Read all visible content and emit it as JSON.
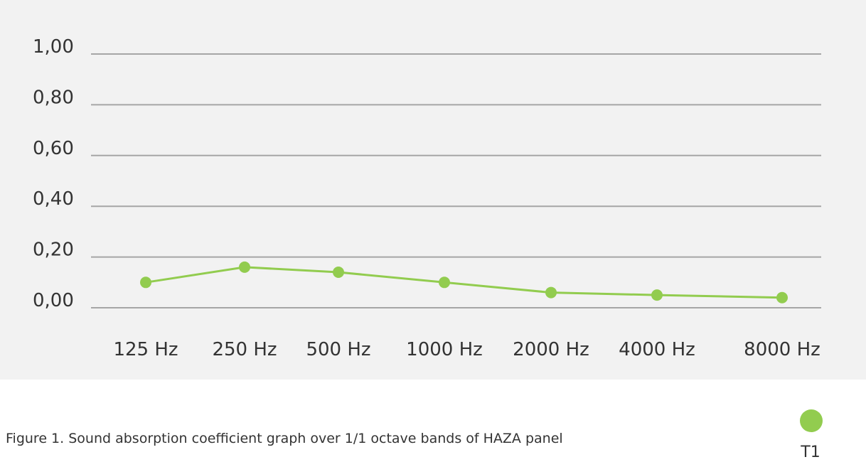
{
  "chart_data": {
    "type": "line",
    "title": "",
    "xlabel": "",
    "ylabel": "",
    "categories": [
      "125 Hz",
      "250 Hz",
      "500 Hz",
      "1000 Hz",
      "2000 Hz",
      "4000 Hz",
      "8000 Hz"
    ],
    "series": [
      {
        "name": "T1",
        "values": [
          0.1,
          0.16,
          0.14,
          0.1,
          0.06,
          0.05,
          0.04
        ]
      }
    ],
    "ylim": [
      0,
      1
    ],
    "yticks": [
      0,
      0.2,
      0.4,
      0.6,
      0.8,
      1.0
    ],
    "ytick_labels": [
      "0,00",
      "0,20",
      "0,40",
      "0,60",
      "0,80",
      "1,00"
    ],
    "grid": true,
    "legend_position": "bottom-right",
    "colors": {
      "series": "#92cc4f",
      "grid": "#a6a6a6",
      "panel_background": "#f2f2f2"
    }
  },
  "caption": "Figure 1. Sound absorption coefficient graph over 1/1 octave bands of HAZA panel"
}
